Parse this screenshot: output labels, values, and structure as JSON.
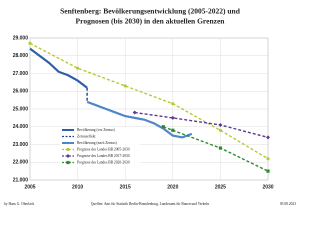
{
  "chart_data": {
    "type": "line",
    "title": "Senftenberg:  Bevölkerungsentwicklung (2005-2022) und",
    "subtitle": "Prognosen (bis 2030) in den aktuellen Grenzen",
    "xlim": [
      2005,
      2030
    ],
    "xticks": [
      2005,
      2010,
      2015,
      2020,
      2025,
      2030
    ],
    "ylim": [
      21000,
      29000
    ],
    "yticks": [
      {
        "value": 21000,
        "label": "21.000"
      },
      {
        "value": 22000,
        "label": "22.000"
      },
      {
        "value": 23000,
        "label": "23.000"
      },
      {
        "value": 24000,
        "label": "24.000"
      },
      {
        "value": 25000,
        "label": "25.000"
      },
      {
        "value": 26000,
        "label": "26.000"
      },
      {
        "value": 27000,
        "label": "27.000"
      },
      {
        "value": 28000,
        "label": "28.000"
      },
      {
        "value": 29000,
        "label": "29.000"
      }
    ],
    "grid": true,
    "series": [
      {
        "name": "Bevölkerung (vor Zensus)",
        "color": "#2f5fa8",
        "x": [
          2005,
          2006,
          2007,
          2008,
          2009,
          2010,
          2011
        ],
        "values": [
          28400,
          28000,
          27600,
          27100,
          26900,
          26600,
          26200
        ]
      },
      {
        "name": "Zensuseffekt",
        "color": "#23408e",
        "dash": true,
        "x": [
          2011,
          2011
        ],
        "values": [
          26200,
          25400
        ]
      },
      {
        "name": "Bevölkerung (nach Zensus)",
        "color": "#4f86c9",
        "x": [
          2011,
          2012,
          2013,
          2014,
          2015,
          2016,
          2017,
          2018,
          2019,
          2020,
          2021,
          2022
        ],
        "values": [
          25400,
          25200,
          25000,
          24800,
          24600,
          24500,
          24400,
          24200,
          23900,
          23500,
          23400,
          23600
        ]
      },
      {
        "name": "Prognose des Landes BB 2005-2030",
        "color": "#b8c838",
        "dash": true,
        "marker": "circle",
        "x": [
          2005,
          2010,
          2015,
          2020,
          2025,
          2030
        ],
        "values": [
          28700,
          27300,
          26300,
          25300,
          23800,
          22200
        ]
      },
      {
        "name": "Prognose des Landes BB 2017-2030",
        "color": "#5b3a94",
        "dash": true,
        "marker": "diamond",
        "x": [
          2016,
          2020,
          2025,
          2030
        ],
        "values": [
          24800,
          24500,
          24100,
          23400
        ]
      },
      {
        "name": "Prognose des Landes BB 2020-2030",
        "color": "#2e8b2e",
        "dash": true,
        "marker": "square",
        "x": [
          2019,
          2020,
          2025,
          2030
        ],
        "values": [
          24000,
          23800,
          22800,
          21500
        ]
      }
    ],
    "credit": "by Hans G. Oberlack",
    "source": "Quellen: Amt für Statistik Berlin-Brandenburg, Landesamt für Bauen und Verkehr",
    "date": "05.08.2023"
  }
}
